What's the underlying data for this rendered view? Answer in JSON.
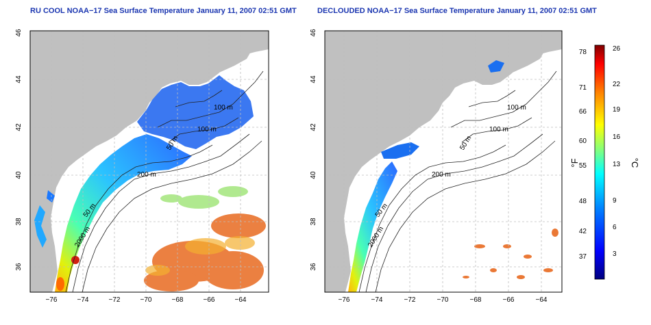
{
  "titles": {
    "left": "RU COOL NOAA−17 Sea Surface Temperature January 11, 2007 02:51 GMT",
    "right": "DECLOUDED NOAA−17 Sea Surface Temperature January 11, 2007 02:51 GMT"
  },
  "maps": [
    {
      "id": "left",
      "lon_ticks": [
        "−76",
        "−74",
        "−72",
        "−70",
        "−68",
        "−66",
        "−64"
      ],
      "lat_ticks": [
        "36",
        "38",
        "40",
        "42",
        "44",
        "46"
      ],
      "contour_labels": [
        "100 m",
        "100 m",
        "50 m",
        "200 m",
        "50 m",
        "2000 m"
      ]
    },
    {
      "id": "right",
      "lon_ticks": [
        "−76",
        "−74",
        "−72",
        "−70",
        "−68",
        "−66",
        "−64"
      ],
      "lat_ticks": [
        "36",
        "38",
        "40",
        "42",
        "44",
        "46"
      ],
      "contour_labels": [
        "100 m",
        "100 m",
        "50 m",
        "200 m",
        "50 m",
        "2000 m"
      ]
    }
  ],
  "colorbar": {
    "fahrenheit_ticks": [
      "78",
      "71",
      "66",
      "60",
      "55",
      "48",
      "42",
      "37"
    ],
    "celsius_ticks": [
      "26",
      "22",
      "19",
      "16",
      "13",
      "9",
      "6",
      "3"
    ],
    "fahrenheit_unit": "°F",
    "celsius_unit": "°C",
    "colors": [
      "#00007f",
      "#0000ff",
      "#0080ff",
      "#00ffff",
      "#80ff80",
      "#ffff00",
      "#ff8000",
      "#ff0000",
      "#7f0000"
    ]
  },
  "colors": {
    "land": "#c0c0c0",
    "title": "#1a35b0"
  }
}
